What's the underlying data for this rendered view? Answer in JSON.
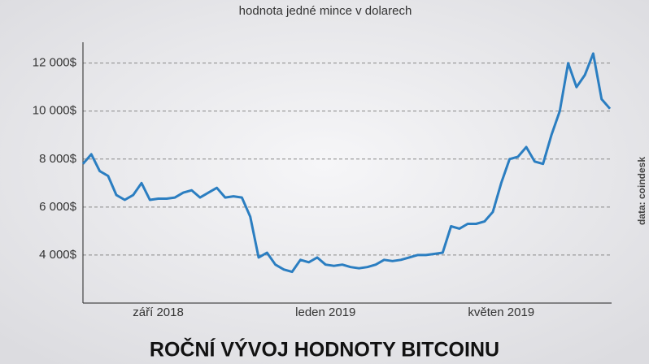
{
  "chart_data": {
    "type": "line",
    "title": "ROČNÍ VÝVOJ HODNOTY BITCOINU",
    "subtitle": "hodnota jedné mince v dolarech",
    "source": "data: coindesk",
    "color": "#2b7ec1",
    "grid": true,
    "categories": [
      null,
      null,
      null,
      null,
      null,
      null,
      null,
      null,
      null,
      "září 2018",
      null,
      null,
      null,
      null,
      null,
      null,
      null,
      null,
      null,
      null,
      null,
      null,
      null,
      null,
      null,
      null,
      null,
      null,
      null,
      "leden 2019",
      null,
      null,
      null,
      null,
      null,
      null,
      null,
      null,
      null,
      null,
      null,
      null,
      null,
      null,
      null,
      null,
      null,
      null,
      null,
      null,
      "květen 2019",
      null,
      null,
      null,
      null,
      null,
      null,
      null,
      null,
      null,
      null,
      null,
      null,
      null
    ],
    "values": [
      7800,
      8200,
      7500,
      7300,
      6500,
      6300,
      6500,
      7000,
      6300,
      6350,
      6350,
      6400,
      6600,
      6700,
      6400,
      6600,
      6800,
      6400,
      6450,
      6400,
      5600,
      3900,
      4100,
      3600,
      3400,
      3300,
      3800,
      3700,
      3900,
      3600,
      3550,
      3600,
      3500,
      3450,
      3500,
      3600,
      3800,
      3750,
      3800,
      3900,
      4000,
      4000,
      4050,
      4100,
      5200,
      5100,
      5300,
      5300,
      5400,
      5800,
      7000,
      8000,
      8100,
      8500,
      7900,
      7800,
      9000,
      10000,
      12000,
      11000,
      11500,
      12400,
      10500,
      10100
    ],
    "ylim": [
      2000,
      12700
    ],
    "yticks": [
      {
        "value": 4000,
        "label": "4 000$"
      },
      {
        "value": 6000,
        "label": "6 000$"
      },
      {
        "value": 8000,
        "label": "8 000$"
      },
      {
        "value": 10000,
        "label": "10 000$"
      },
      {
        "value": 12000,
        "label": "12 000$"
      }
    ]
  }
}
